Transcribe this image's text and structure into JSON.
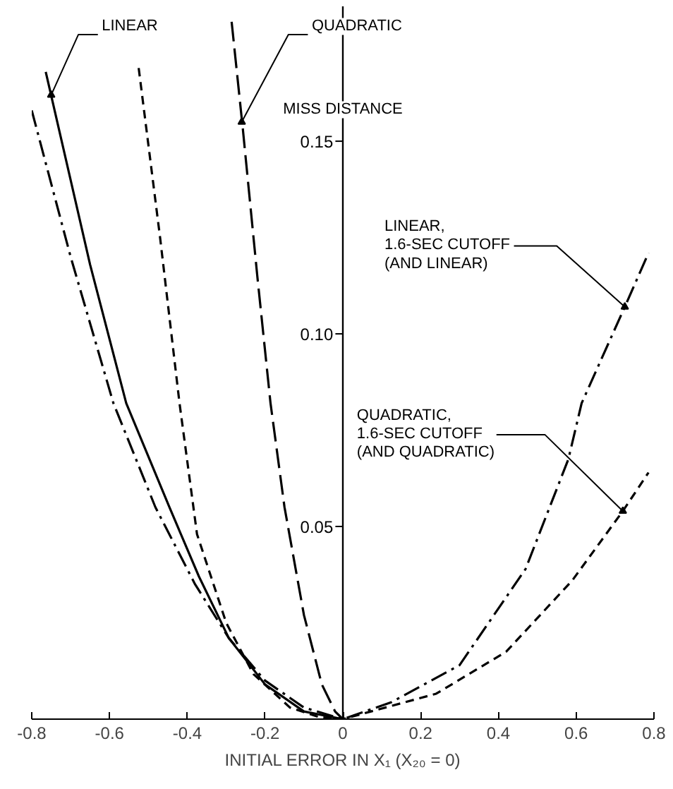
{
  "chart_data": {
    "type": "line",
    "xlabel": "INITIAL ERROR IN X₁ (X₂₀ = 0)",
    "ylabel": "MISS DISTANCE",
    "xlim": [
      -0.8,
      0.8
    ],
    "ylim": [
      0,
      0.185
    ],
    "xticks": [
      -0.8,
      -0.6,
      -0.4,
      -0.2,
      0,
      0.2,
      0.4,
      0.6,
      0.8
    ],
    "yticks": [
      {
        "value": 0.05,
        "label": "0.05"
      },
      {
        "value": 0.1,
        "label": "0.10"
      },
      {
        "value": 0.15,
        "label": "0.15"
      }
    ],
    "grid": false,
    "marker": "none",
    "series": [
      {
        "color": "#000000",
        "line_style": "solid",
        "x": [
          -0.764,
          -0.65,
          -0.557,
          -0.446,
          -0.37,
          -0.293,
          -0.2,
          -0.1,
          0
        ],
        "values": [
          0.168,
          0.118,
          0.082,
          0.055,
          0.037,
          0.021,
          0.009,
          0.002,
          0
        ]
      },
      {
        "color": "#000000",
        "line_style": "longdash",
        "x": [
          -0.286,
          -0.257,
          -0.22,
          -0.186,
          -0.15,
          -0.1,
          -0.054,
          -0.02,
          0
        ],
        "values": [
          0.181,
          0.153,
          0.115,
          0.082,
          0.055,
          0.027,
          0.009,
          0.002,
          0
        ]
      },
      {
        "color": "#000000",
        "line_style": "dashdot",
        "x": [
          -0.8,
          -0.7,
          -0.59,
          -0.482,
          -0.38,
          -0.293,
          -0.2,
          -0.1,
          0,
          0.125,
          0.3,
          0.47,
          0.58,
          0.614,
          0.725,
          0.786
        ],
        "values": [
          0.158,
          0.12,
          0.082,
          0.055,
          0.035,
          0.021,
          0.01,
          0.003,
          0,
          0.0044,
          0.014,
          0.039,
          0.0675,
          0.082,
          0.107,
          0.121
        ]
      },
      {
        "color": "#000000",
        "line_style": "dashed",
        "x": [
          -0.525,
          -0.47,
          -0.42,
          -0.375,
          -0.3,
          -0.23,
          -0.136,
          -0.06,
          0,
          0.24,
          0.42,
          0.59,
          0.72,
          0.786
        ],
        "values": [
          0.169,
          0.125,
          0.082,
          0.048,
          0.025,
          0.0117,
          0.003,
          0.0005,
          0,
          0.0066,
          0.0175,
          0.036,
          0.054,
          0.064
        ]
      }
    ],
    "annotations": [
      {
        "text": "LINEAR",
        "x": -0.75,
        "y": 0.162
      },
      {
        "text": "QUADRATIC",
        "x": -0.26,
        "y": 0.155
      },
      {
        "text": "LINEAR,\n1.6-SEC CUTOFF\n(AND LINEAR)",
        "x": 0.725,
        "y": 0.107
      },
      {
        "text": "QUADRATIC,\n1.6-SEC CUTOFF\n(AND QUADRATIC)",
        "x": 0.72,
        "y": 0.054
      }
    ]
  }
}
